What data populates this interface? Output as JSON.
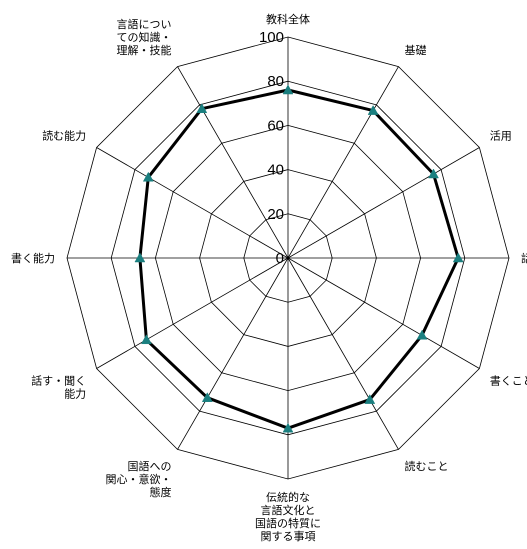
{
  "chart_data": {
    "type": "radar",
    "title": "",
    "categories": [
      "教科全体",
      "基礎",
      "活用",
      "話すこと・聞くこと",
      "書くこと",
      "読むこと",
      "伝統的な\n言語文化と\n国語の特質に\n関する事項",
      "国語への\n関心・意欲・\n態度",
      "話す・聞く\n能力",
      "書く能力",
      "読む能力",
      "言語につい\nての知識・\n理解・技能"
    ],
    "ticks": [
      "0",
      "20",
      "40",
      "60",
      "80",
      "100"
    ],
    "rlim": [
      0,
      100
    ],
    "series": [
      {
        "values": [
          76,
          77,
          76,
          77,
          70,
          74,
          77,
          73,
          74,
          67,
          73,
          78
        ]
      }
    ],
    "colors": {
      "line": "#000000",
      "marker": "#1a7f7f",
      "grid": "#000000"
    },
    "grid": true
  }
}
